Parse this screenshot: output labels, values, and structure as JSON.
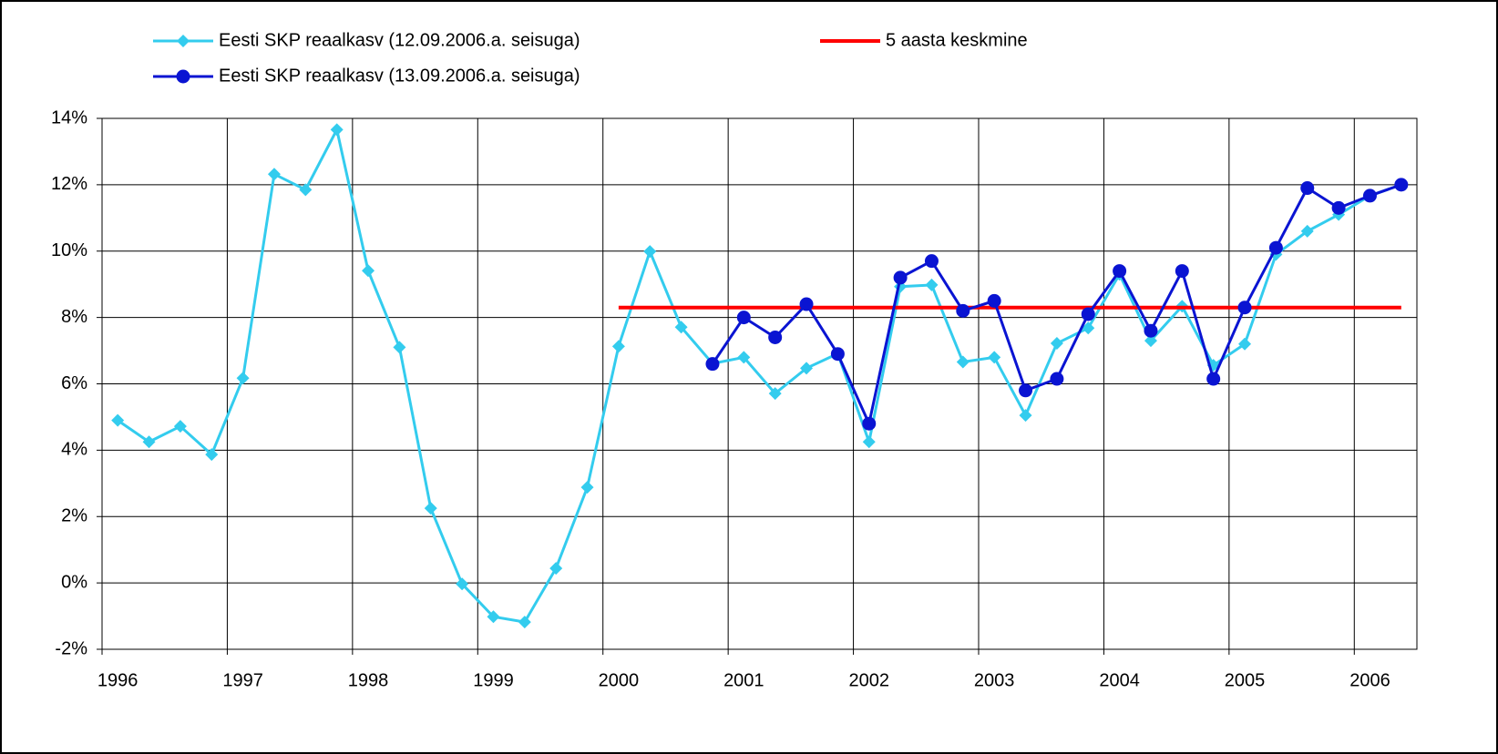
{
  "chart_data": {
    "type": "line",
    "categories": [
      "1996",
      null,
      null,
      null,
      "1997",
      null,
      null,
      null,
      "1998",
      null,
      null,
      null,
      "1999",
      null,
      null,
      null,
      "2000",
      null,
      null,
      null,
      "2001",
      null,
      null,
      null,
      "2002",
      null,
      null,
      null,
      "2003",
      null,
      null,
      null,
      "2004",
      null,
      null,
      null,
      "2005",
      null,
      null,
      null,
      "2006",
      null
    ],
    "series": [
      {
        "name": "Eesti SKP reaalkasv (12.09.2006.a. seisuga)",
        "color": "#33ccee",
        "marker": "diamond",
        "values": [
          4.9,
          4.25,
          4.72,
          3.87,
          6.17,
          12.32,
          11.85,
          13.66,
          9.41,
          7.1,
          2.25,
          -0.03,
          -1.02,
          -1.18,
          0.44,
          2.88,
          7.13,
          9.99,
          7.71,
          6.61,
          6.8,
          5.71,
          6.47,
          6.91,
          4.25,
          8.93,
          8.98,
          6.66,
          6.8,
          5.05,
          7.22,
          7.68,
          9.3,
          7.3,
          8.34,
          6.56,
          7.2,
          9.9,
          10.6,
          11.1,
          11.67,
          12.0
        ]
      },
      {
        "name": "5 aasta keskmine",
        "color": "#ff0000",
        "marker": "none",
        "values": [
          null,
          null,
          null,
          null,
          null,
          null,
          null,
          null,
          null,
          null,
          null,
          null,
          null,
          null,
          null,
          null,
          8.3,
          8.3,
          8.3,
          8.3,
          8.3,
          8.3,
          8.3,
          8.3,
          8.3,
          8.3,
          8.3,
          8.3,
          8.3,
          8.3,
          8.3,
          8.3,
          8.3,
          8.3,
          8.3,
          8.3,
          8.3,
          8.3,
          8.3,
          8.3,
          8.3,
          8.3
        ]
      },
      {
        "name": "Eesti SKP reaalkasv (13.09.2006.a. seisuga)",
        "color": "#0a14d2",
        "marker": "circle",
        "values": [
          null,
          null,
          null,
          null,
          null,
          null,
          null,
          null,
          null,
          null,
          null,
          null,
          null,
          null,
          null,
          null,
          null,
          null,
          null,
          6.6,
          8.0,
          7.4,
          8.4,
          6.9,
          4.8,
          9.2,
          9.7,
          8.2,
          8.5,
          5.8,
          6.15,
          8.1,
          9.4,
          7.6,
          9.4,
          6.15,
          8.3,
          10.1,
          11.9,
          11.3,
          11.67,
          12.0
        ]
      }
    ],
    "ylim": [
      -2,
      14
    ],
    "yticks": [
      {
        "value": -2,
        "label": "-2%"
      },
      {
        "value": 0,
        "label": "0%"
      },
      {
        "value": 2,
        "label": "2%"
      },
      {
        "value": 4,
        "label": "4%"
      },
      {
        "value": 6,
        "label": "6%"
      },
      {
        "value": 8,
        "label": "8%"
      },
      {
        "value": 10,
        "label": "10%"
      },
      {
        "value": 12,
        "label": "12%"
      },
      {
        "value": 14,
        "label": "14%"
      }
    ],
    "grid": true
  }
}
